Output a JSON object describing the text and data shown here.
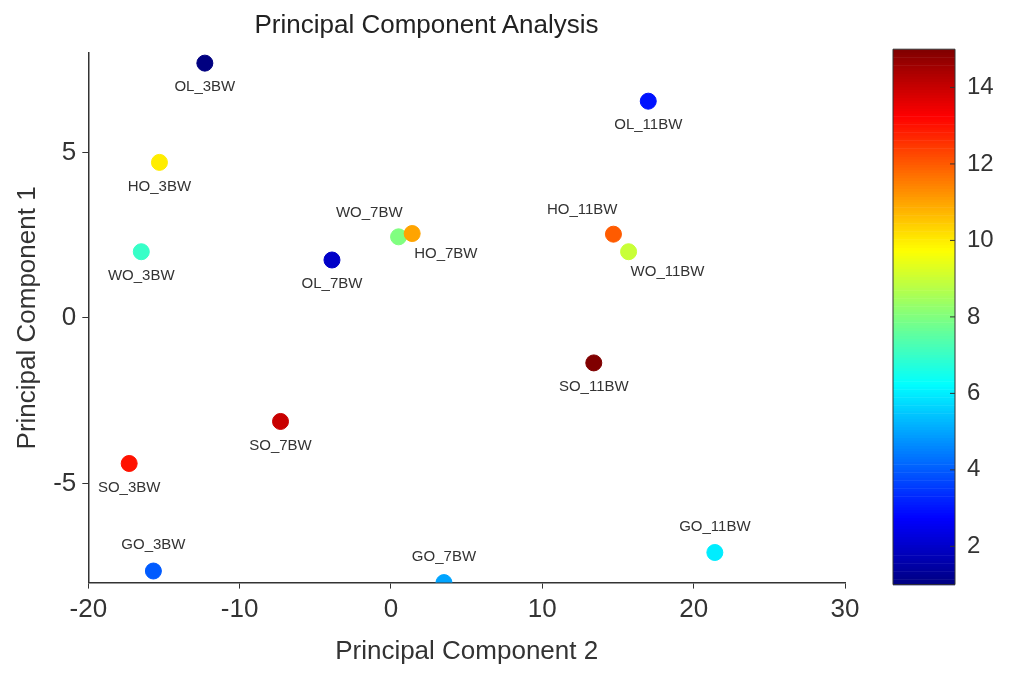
{
  "chart_data": {
    "type": "scatter",
    "title": "Principal Component Analysis",
    "xlabel": "Principal Component 2",
    "ylabel": "Principal Component 1",
    "x": [
      -12.3,
      -3.9,
      17.0,
      -15.7,
      3.5,
      21.4,
      -16.5,
      0.5,
      15.7,
      -15.3,
      1.4,
      14.7,
      -17.3,
      -7.3,
      13.4
    ],
    "values": [
      7.7,
      1.75,
      6.55,
      -7.65,
      -8.0,
      -7.09,
      2.0,
      2.45,
      2.0,
      4.7,
      2.55,
      2.53,
      -4.4,
      -3.13,
      -1.36
    ],
    "cvalues": [
      1,
      2,
      3,
      4,
      5,
      6,
      7,
      8,
      9,
      10,
      11,
      12,
      13,
      14,
      15
    ],
    "clim": [
      1,
      15
    ],
    "cticks": [
      2,
      4,
      6,
      8,
      10,
      12,
      14
    ],
    "xlim": [
      -20,
      30
    ],
    "xticks": [
      -20,
      -10,
      0,
      10,
      20,
      30
    ],
    "ylim": [
      -8,
      8
    ],
    "yticks": [
      -5,
      0,
      5
    ],
    "marker": "circle",
    "grid": false,
    "legend": false,
    "annotations": [
      {
        "text": "OL_3BW",
        "x": -12.3,
        "y": 7.7
      },
      {
        "text": "OL_7BW",
        "x": -3.9,
        "y": 1.75
      },
      {
        "text": "OL_11BW",
        "x": 17.0,
        "y": 6.55
      },
      {
        "text": "GO_3BW",
        "x": -15.7,
        "y": -7.65
      },
      {
        "text": "GO_7BW",
        "x": 3.5,
        "y": -8.0
      },
      {
        "text": "GO_11BW",
        "x": 21.4,
        "y": -7.09
      },
      {
        "text": "WO_3BW",
        "x": -16.5,
        "y": 2.0
      },
      {
        "text": "WO_7BW",
        "x": 0.5,
        "y": 2.45
      },
      {
        "text": "WO_11BW",
        "x": 15.7,
        "y": 2.0
      },
      {
        "text": "HO_3BW",
        "x": -15.3,
        "y": 4.7
      },
      {
        "text": "HO_7BW",
        "x": 1.4,
        "y": 2.55
      },
      {
        "text": "HO_11BW",
        "x": 14.7,
        "y": 2.53
      },
      {
        "text": "SO_3BW",
        "x": -17.3,
        "y": -4.4
      },
      {
        "text": "SO_7BW",
        "x": -7.3,
        "y": -3.13
      },
      {
        "text": "SO_11BW",
        "x": 13.4,
        "y": -1.36
      }
    ]
  }
}
